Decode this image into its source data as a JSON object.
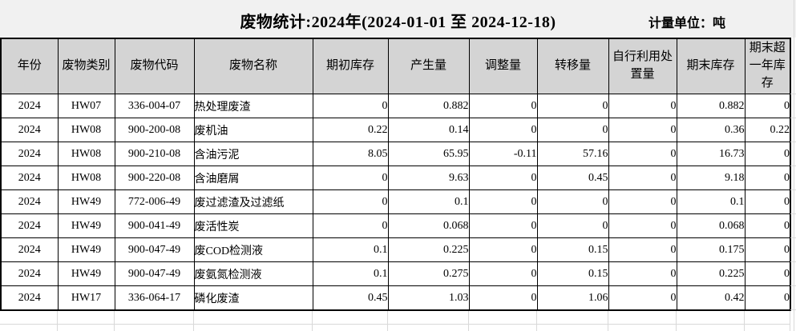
{
  "title": "废物统计:2024年(2024-01-01 至 2024-12-18)",
  "unit_label": "计量单位：吨",
  "table": {
    "columns": [
      "年份",
      "废物类别",
      "废物代码",
      "废物名称",
      "期初库存",
      "产生量",
      "调整量",
      "转移量",
      "自行利用处置量",
      "期末库存",
      "期末超一年库存"
    ],
    "rows": [
      [
        "2024",
        "HW07",
        "336-004-07",
        "热处理废渣",
        "0",
        "0.882",
        "0",
        "0",
        "0",
        "0.882",
        "0"
      ],
      [
        "2024",
        "HW08",
        "900-200-08",
        "废机油",
        "0.22",
        "0.14",
        "0",
        "0",
        "0",
        "0.36",
        "0.22"
      ],
      [
        "2024",
        "HW08",
        "900-210-08",
        "含油污泥",
        "8.05",
        "65.95",
        "-0.11",
        "57.16",
        "0",
        "16.73",
        "0"
      ],
      [
        "2024",
        "HW08",
        "900-220-08",
        "含油磨屑",
        "0",
        "9.63",
        "0",
        "0.45",
        "0",
        "9.18",
        "0"
      ],
      [
        "2024",
        "HW49",
        "772-006-49",
        "废过滤渣及过滤纸",
        "0",
        "0.1",
        "0",
        "0",
        "0",
        "0.1",
        "0"
      ],
      [
        "2024",
        "HW49",
        "900-041-49",
        "废活性炭",
        "0",
        "0.068",
        "0",
        "0",
        "0",
        "0.068",
        "0"
      ],
      [
        "2024",
        "HW49",
        "900-047-49",
        "废COD检测液",
        "0.1",
        "0.225",
        "0",
        "0.15",
        "0",
        "0.175",
        "0"
      ],
      [
        "2024",
        "HW49",
        "900-047-49",
        "废氨氮检测液",
        "0.1",
        "0.275",
        "0",
        "0.15",
        "0",
        "0.225",
        "0"
      ],
      [
        "2024",
        "HW17",
        "336-064-17",
        "磷化废渣",
        "0.45",
        "1.03",
        "0",
        "1.06",
        "0",
        "0.42",
        "0"
      ]
    ]
  },
  "colors": {
    "title_band_bg": "#f1f1f1",
    "header_bg": "#d4d4d4",
    "table_border": "#000000",
    "sheet_gridline": "#d9d9d9"
  }
}
